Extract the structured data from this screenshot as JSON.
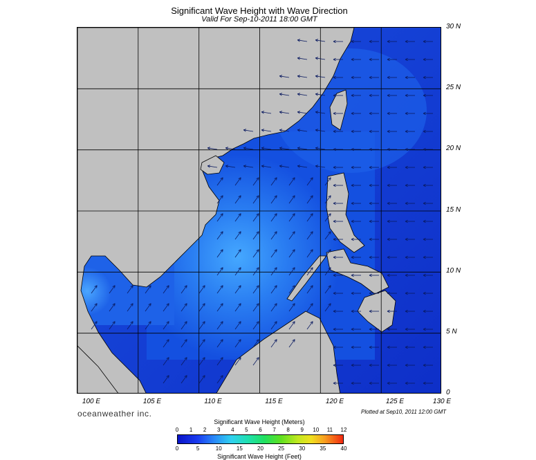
{
  "title": "Significant Wave Height with Wave Direction",
  "subtitle": "Valid For Sep-10-2011 18:00 GMT",
  "brand": "oceanweather inc.",
  "plotted": "Plotted at Sep10, 2011 12:00 GMT",
  "lat_labels": [
    "30 N",
    "25 N",
    "20 N",
    "15 N",
    "10 N",
    "5 N",
    "0"
  ],
  "lon_labels": [
    "100 E",
    "105 E",
    "110 E",
    "115 E",
    "120 E",
    "125 E",
    "130 E"
  ],
  "colorbar": {
    "meters_title": "Significant Wave Height (Meters)",
    "feet_title": "Significant Wave Height (Feet)",
    "meters_ticks": [
      "0",
      "1",
      "2",
      "3",
      "4",
      "5",
      "6",
      "7",
      "8",
      "9",
      "10",
      "11",
      "12"
    ],
    "feet_ticks": [
      "0",
      "5",
      "10",
      "15",
      "20",
      "25",
      "30",
      "35",
      "40"
    ]
  },
  "colors": {
    "land": "#c0c0c0",
    "ocean_low": "#1030d8",
    "ocean_mid": "#1e6cf0",
    "ocean_high": "#40b0ff",
    "arrow": "#0a1a60"
  },
  "chart_data": {
    "type": "heatmap",
    "extent": {
      "lon": [
        100,
        130
      ],
      "lat": [
        0,
        30
      ]
    },
    "colorbar_range_m": [
      0,
      12
    ],
    "colorbar_range_ft": [
      0,
      40
    ],
    "max_wave_height_region": "central South China Sea, approx 2-3 m",
    "predominant_wave_direction": "from southwest in South China Sea, from east in Philippine Sea"
  }
}
